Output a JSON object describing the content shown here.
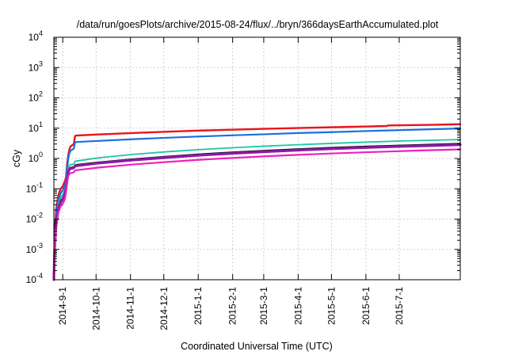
{
  "chart_data": {
    "type": "line",
    "title": "/data/run/goesPlots/archive/2015-08-24/flux/../bryn/366daysEarthAccumulated.plot",
    "xlabel": "Coordinated Universal Time (UTC)",
    "ylabel": "cGy",
    "yscale": "log",
    "ylim_exp": [
      -4,
      4
    ],
    "xlim_day": [
      0,
      366
    ],
    "grid": true,
    "y_ticks": [
      {
        "exp": -4,
        "base": "10",
        "sup": "-4"
      },
      {
        "exp": -3,
        "base": "10",
        "sup": "-3"
      },
      {
        "exp": -2,
        "base": "10",
        "sup": "-2"
      },
      {
        "exp": -1,
        "base": "10",
        "sup": "-1"
      },
      {
        "exp": 0,
        "base": "10",
        "sup": "0"
      },
      {
        "exp": 1,
        "base": "10",
        "sup": "1"
      },
      {
        "exp": 2,
        "base": "10",
        "sup": "2"
      },
      {
        "exp": 3,
        "base": "10",
        "sup": "3"
      },
      {
        "exp": 4,
        "base": "10",
        "sup": "4"
      }
    ],
    "x_ticks": [
      {
        "day": 8,
        "label": "2014-9-1"
      },
      {
        "day": 38,
        "label": "2014-10-1"
      },
      {
        "day": 69,
        "label": "2014-11-1"
      },
      {
        "day": 99,
        "label": "2014-12-1"
      },
      {
        "day": 130,
        "label": "2015-1-1"
      },
      {
        "day": 161,
        "label": "2015-2-1"
      },
      {
        "day": 189,
        "label": "2015-3-1"
      },
      {
        "day": 220,
        "label": "2015-4-1"
      },
      {
        "day": 250,
        "label": "2015-5-1"
      },
      {
        "day": 281,
        "label": "2015-6-1"
      },
      {
        "day": 311,
        "label": "2015-7-1"
      }
    ],
    "series": [
      {
        "name": "red",
        "color": "#e8141b",
        "width": 2.4,
        "points": [
          [
            0,
            0.0001
          ],
          [
            0.7,
            0.003
          ],
          [
            2,
            0.02
          ],
          [
            4,
            0.06
          ],
          [
            6,
            0.1
          ],
          [
            8,
            0.12
          ],
          [
            9,
            0.15
          ],
          [
            10,
            0.18
          ],
          [
            11,
            0.25
          ],
          [
            12,
            0.7
          ],
          [
            13,
            1.3
          ],
          [
            14,
            2.0
          ],
          [
            15,
            2.5
          ],
          [
            17,
            2.8
          ],
          [
            18,
            3.0
          ],
          [
            19,
            5.5
          ],
          [
            20,
            5.7
          ],
          [
            40,
            6.2
          ],
          [
            70,
            6.9
          ],
          [
            100,
            7.6
          ],
          [
            130,
            8.3
          ],
          [
            160,
            8.9
          ],
          [
            190,
            9.5
          ],
          [
            220,
            10.1
          ],
          [
            250,
            10.7
          ],
          [
            280,
            11.3
          ],
          [
            300,
            11.8
          ],
          [
            301,
            12.3
          ],
          [
            320,
            12.6
          ],
          [
            340,
            12.9
          ],
          [
            366,
            13.5
          ]
        ]
      },
      {
        "name": "blue",
        "color": "#1a6fdf",
        "width": 2.2,
        "points": [
          [
            0,
            0.0001
          ],
          [
            0.7,
            0.002
          ],
          [
            2,
            0.015
          ],
          [
            4,
            0.04
          ],
          [
            6,
            0.07
          ],
          [
            8,
            0.09
          ],
          [
            9,
            0.11
          ],
          [
            10,
            0.14
          ],
          [
            11,
            0.2
          ],
          [
            12,
            0.5
          ],
          [
            13,
            1.0
          ],
          [
            14,
            1.5
          ],
          [
            15,
            1.8
          ],
          [
            17,
            2.0
          ],
          [
            18,
            2.1
          ],
          [
            19,
            3.3
          ],
          [
            20,
            3.5
          ],
          [
            40,
            3.8
          ],
          [
            70,
            4.3
          ],
          [
            100,
            4.8
          ],
          [
            130,
            5.3
          ],
          [
            160,
            5.8
          ],
          [
            190,
            6.3
          ],
          [
            220,
            6.9
          ],
          [
            250,
            7.4
          ],
          [
            280,
            8.0
          ],
          [
            310,
            8.6
          ],
          [
            340,
            9.2
          ],
          [
            366,
            9.8
          ]
        ]
      },
      {
        "name": "teal",
        "color": "#1fc6a4",
        "width": 1.8,
        "points": [
          [
            0,
            0.0001
          ],
          [
            0.7,
            0.0015
          ],
          [
            2,
            0.01
          ],
          [
            4,
            0.03
          ],
          [
            6,
            0.05
          ],
          [
            8,
            0.065
          ],
          [
            9,
            0.08
          ],
          [
            10,
            0.1
          ],
          [
            11,
            0.15
          ],
          [
            12,
            0.3
          ],
          [
            13,
            0.5
          ],
          [
            14,
            0.6
          ],
          [
            15,
            0.62
          ],
          [
            17,
            0.64
          ],
          [
            18,
            0.66
          ],
          [
            19,
            0.8
          ],
          [
            20,
            0.82
          ],
          [
            40,
            1.05
          ],
          [
            70,
            1.35
          ],
          [
            100,
            1.65
          ],
          [
            130,
            1.95
          ],
          [
            160,
            2.25
          ],
          [
            190,
            2.55
          ],
          [
            220,
            2.85
          ],
          [
            250,
            3.15
          ],
          [
            280,
            3.45
          ],
          [
            310,
            3.75
          ],
          [
            340,
            4.0
          ],
          [
            366,
            4.2
          ]
        ]
      },
      {
        "name": "black",
        "color": "#111111",
        "width": 1.8,
        "points": [
          [
            0,
            0.0001
          ],
          [
            0.7,
            0.0012
          ],
          [
            2,
            0.008
          ],
          [
            4,
            0.025
          ],
          [
            6,
            0.04
          ],
          [
            8,
            0.05
          ],
          [
            9,
            0.06
          ],
          [
            10,
            0.075
          ],
          [
            11,
            0.12
          ],
          [
            12,
            0.25
          ],
          [
            13,
            0.4
          ],
          [
            14,
            0.48
          ],
          [
            15,
            0.5
          ],
          [
            17,
            0.52
          ],
          [
            18,
            0.53
          ],
          [
            19,
            0.6
          ],
          [
            20,
            0.62
          ],
          [
            40,
            0.75
          ],
          [
            70,
            0.95
          ],
          [
            100,
            1.15
          ],
          [
            130,
            1.38
          ],
          [
            160,
            1.6
          ],
          [
            190,
            1.82
          ],
          [
            220,
            2.05
          ],
          [
            250,
            2.28
          ],
          [
            280,
            2.5
          ],
          [
            310,
            2.7
          ],
          [
            340,
            2.9
          ],
          [
            366,
            3.1
          ]
        ]
      },
      {
        "name": "purple",
        "color": "#8a1aa8",
        "width": 3.2,
        "points": [
          [
            0,
            0.0001
          ],
          [
            0.7,
            0.001
          ],
          [
            2,
            0.007
          ],
          [
            4,
            0.022
          ],
          [
            6,
            0.035
          ],
          [
            8,
            0.045
          ],
          [
            9,
            0.055
          ],
          [
            10,
            0.07
          ],
          [
            11,
            0.11
          ],
          [
            12,
            0.22
          ],
          [
            13,
            0.36
          ],
          [
            14,
            0.44
          ],
          [
            15,
            0.46
          ],
          [
            17,
            0.48
          ],
          [
            18,
            0.49
          ],
          [
            19,
            0.55
          ],
          [
            20,
            0.57
          ],
          [
            40,
            0.7
          ],
          [
            70,
            0.88
          ],
          [
            100,
            1.06
          ],
          [
            130,
            1.27
          ],
          [
            160,
            1.47
          ],
          [
            190,
            1.67
          ],
          [
            220,
            1.88
          ],
          [
            250,
            2.08
          ],
          [
            280,
            2.28
          ],
          [
            310,
            2.48
          ],
          [
            340,
            2.66
          ],
          [
            366,
            2.85
          ]
        ]
      },
      {
        "name": "magenta",
        "color": "#f01fbc",
        "width": 2.2,
        "points": [
          [
            0,
            0.0001
          ],
          [
            0.7,
            0.0008
          ],
          [
            2,
            0.005
          ],
          [
            4,
            0.016
          ],
          [
            6,
            0.026
          ],
          [
            8,
            0.032
          ],
          [
            9,
            0.038
          ],
          [
            10,
            0.048
          ],
          [
            11,
            0.08
          ],
          [
            12,
            0.16
          ],
          [
            13,
            0.26
          ],
          [
            14,
            0.31
          ],
          [
            15,
            0.33
          ],
          [
            17,
            0.34
          ],
          [
            18,
            0.35
          ],
          [
            19,
            0.4
          ],
          [
            20,
            0.41
          ],
          [
            40,
            0.5
          ],
          [
            70,
            0.63
          ],
          [
            100,
            0.76
          ],
          [
            130,
            0.9
          ],
          [
            160,
            1.04
          ],
          [
            190,
            1.18
          ],
          [
            220,
            1.32
          ],
          [
            250,
            1.46
          ],
          [
            280,
            1.6
          ],
          [
            310,
            1.74
          ],
          [
            340,
            1.88
          ],
          [
            366,
            2.0
          ]
        ]
      }
    ]
  }
}
